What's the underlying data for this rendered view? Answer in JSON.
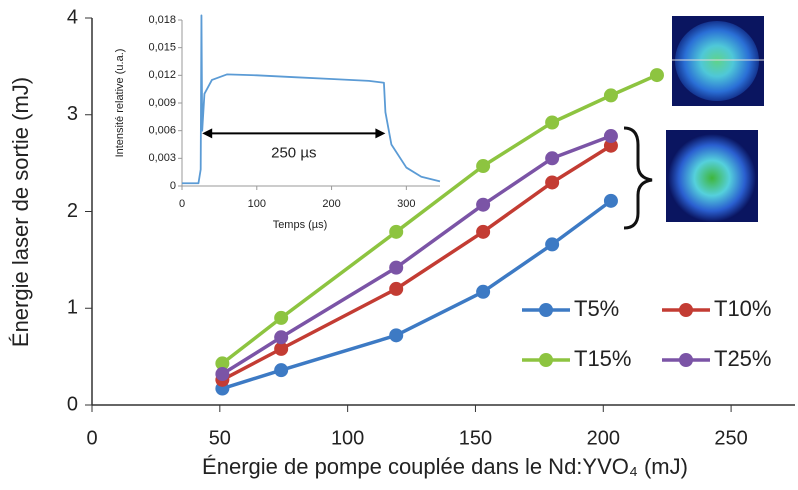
{
  "chart_data": [
    {
      "type": "line",
      "x_label": "Énergie de pompe couplée dans le Nd:YVO₄ (mJ)",
      "y_label": "Énergie laser de sortie (mJ)",
      "xlim": [
        0,
        275
      ],
      "xticks": [
        0,
        50,
        100,
        150,
        200,
        250
      ],
      "ylim": [
        0,
        4
      ],
      "yticks": [
        0,
        1,
        2,
        3,
        4
      ],
      "legend": "lower right",
      "series": [
        {
          "name": "T5%",
          "color": "#3d7ac4",
          "x": [
            51,
            74,
            119,
            153,
            180,
            203
          ],
          "values": [
            0.17,
            0.36,
            0.72,
            1.17,
            1.66,
            2.11
          ]
        },
        {
          "name": "T10%",
          "color": "#c33c33",
          "x": [
            51,
            74,
            119,
            153,
            180,
            203
          ],
          "values": [
            0.26,
            0.58,
            1.2,
            1.79,
            2.3,
            2.68
          ]
        },
        {
          "name": "T15%",
          "color": "#8dc440",
          "x": [
            51,
            74,
            119,
            153,
            180,
            203,
            221
          ],
          "values": [
            0.43,
            0.9,
            1.79,
            2.47,
            2.92,
            3.2,
            3.41
          ]
        },
        {
          "name": "T25%",
          "color": "#7b54a6",
          "x": [
            51,
            74,
            119,
            153,
            180,
            203
          ],
          "values": [
            0.32,
            0.7,
            1.42,
            2.07,
            2.55,
            2.78
          ]
        }
      ]
    },
    {
      "type": "line",
      "x_label": "Temps (µs)",
      "y_label": "Intensité relative (u.a.)",
      "annotation": "250 µs",
      "xlim": [
        0,
        345
      ],
      "xticks": [
        0,
        100,
        200,
        300
      ],
      "ylim": [
        0,
        0.018
      ],
      "yticks": [
        0,
        {
          "value": 0.003,
          "label": "0,003"
        },
        {
          "value": 0.006,
          "label": "0,006"
        },
        {
          "value": 0.009,
          "label": "0,009"
        },
        {
          "value": 0.012,
          "label": "0,012"
        },
        {
          "value": 0.015,
          "label": "0,015"
        },
        {
          "value": 0.018,
          "label": "0,018"
        }
      ],
      "series": [
        {
          "color": "#5b9bd5",
          "x": [
            0,
            22,
            25,
            26,
            27,
            30,
            40,
            60,
            100,
            150,
            200,
            250,
            270,
            272,
            280,
            300,
            320,
            345
          ],
          "values": [
            0.0003,
            0.0003,
            0.0018,
            0.0185,
            0.006,
            0.01,
            0.0115,
            0.0121,
            0.012,
            0.0118,
            0.0116,
            0.0114,
            0.0112,
            0.008,
            0.0045,
            0.002,
            0.001,
            0.0005
          ]
        }
      ]
    }
  ]
}
